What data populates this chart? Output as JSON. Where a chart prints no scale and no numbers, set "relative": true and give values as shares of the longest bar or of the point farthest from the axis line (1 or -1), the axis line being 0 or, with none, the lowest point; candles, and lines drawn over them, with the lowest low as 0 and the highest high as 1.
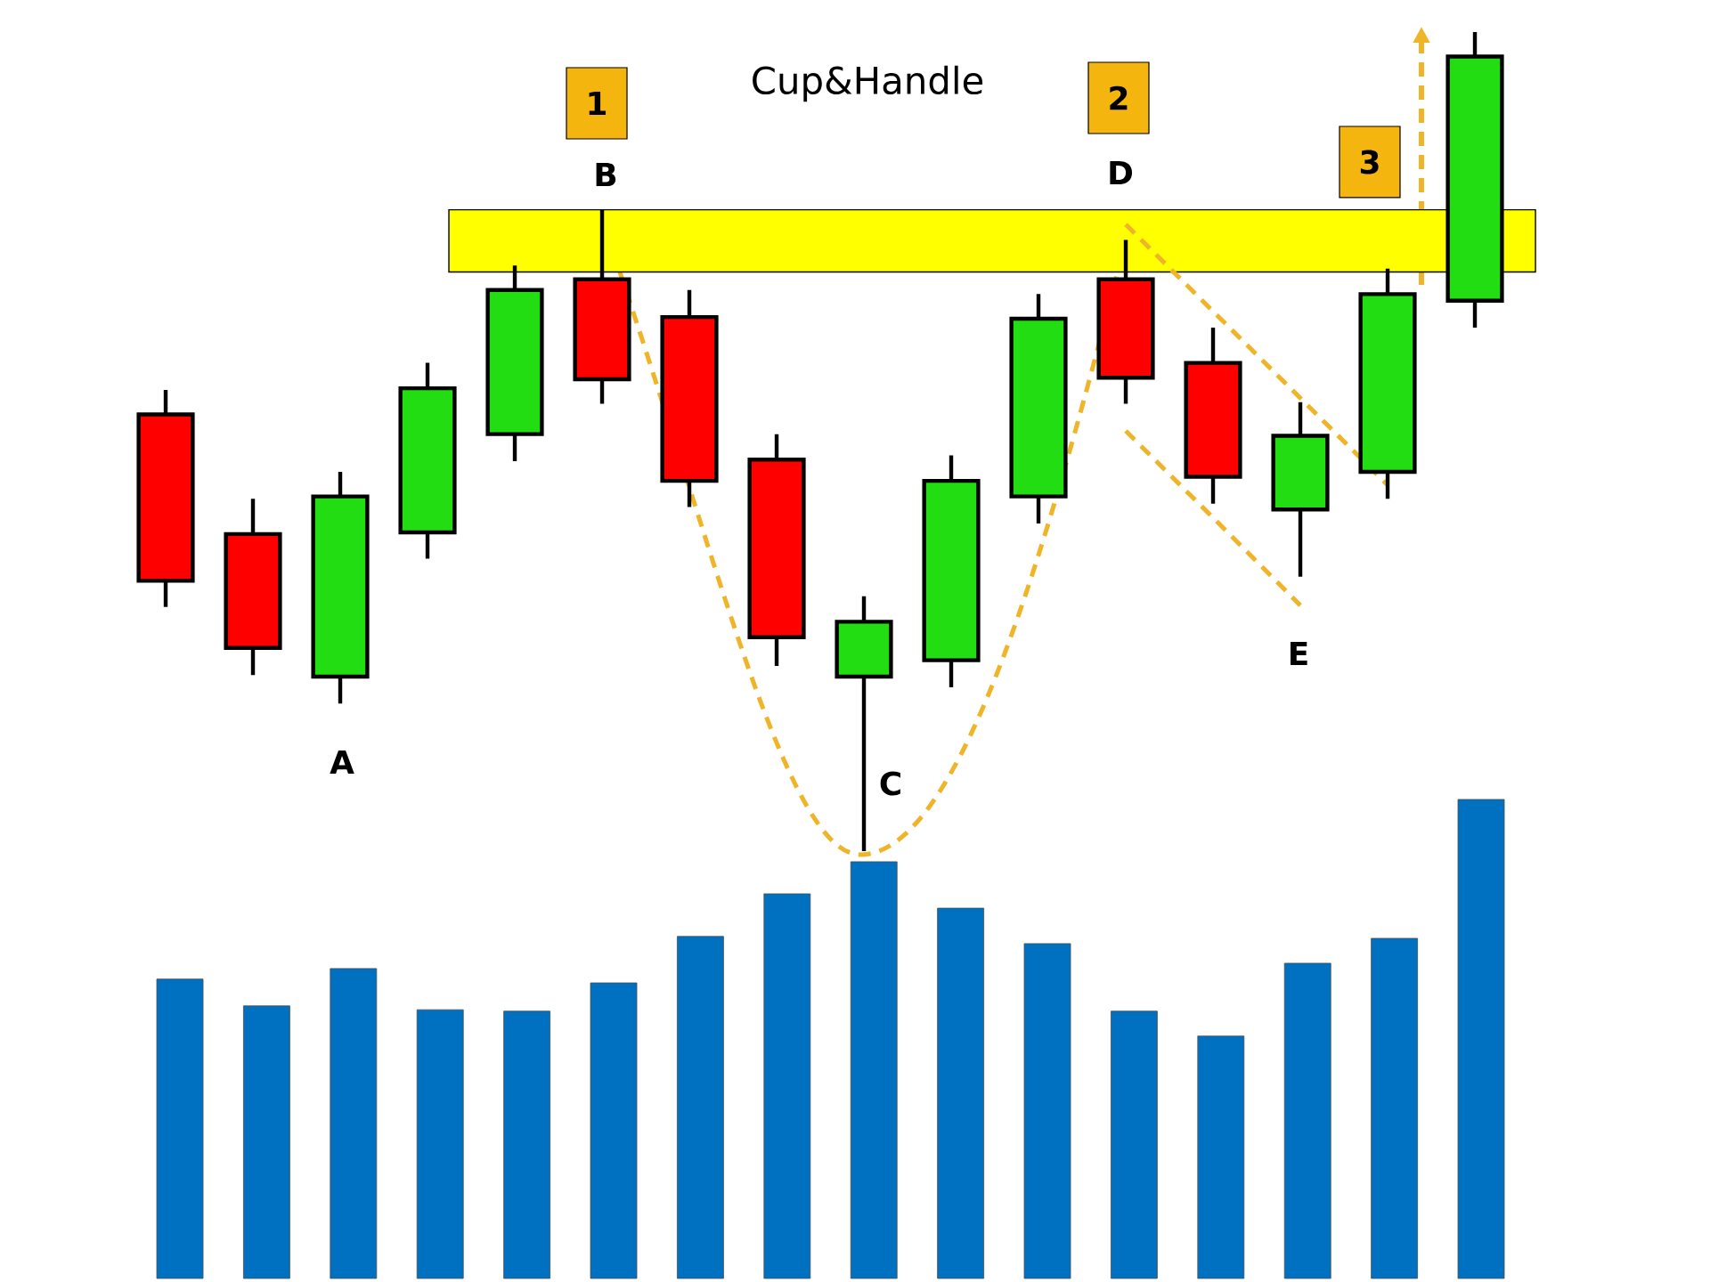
{
  "chart_data": [
    {
      "type": "candlestick",
      "title": "Cup&Handle",
      "relative": true,
      "tick_labels": false,
      "categories": [
        null,
        null,
        null,
        null,
        null,
        null,
        null,
        null,
        null,
        null,
        null,
        null,
        null,
        null,
        null,
        null
      ],
      "ohlc": [
        [
          0.533,
          0.563,
          0.298,
          0.33
        ],
        [
          0.387,
          0.43,
          0.215,
          0.248
        ],
        [
          0.213,
          0.463,
          0.18,
          0.433
        ],
        [
          0.389,
          0.596,
          0.357,
          0.565
        ],
        [
          0.509,
          0.715,
          0.476,
          0.685
        ],
        [
          0.698,
          0.783,
          0.546,
          0.576
        ],
        [
          0.652,
          0.685,
          0.42,
          0.452
        ],
        [
          0.478,
          0.509,
          0.226,
          0.261
        ],
        [
          0.213,
          0.311,
          0.0,
          0.28
        ],
        [
          0.233,
          0.483,
          0.2,
          0.452
        ],
        [
          0.433,
          0.68,
          0.4,
          0.65
        ],
        [
          0.698,
          0.746,
          0.546,
          0.578
        ],
        [
          0.596,
          0.639,
          0.424,
          0.457
        ],
        [
          0.417,
          0.548,
          0.335,
          0.507
        ],
        [
          0.463,
          0.711,
          0.43,
          0.68
        ],
        [
          0.672,
          1.0,
          0.639,
          0.97
        ]
      ],
      "colors": [
        "#ff0000",
        "#ff0000",
        "#22dd11",
        "#22dd11",
        "#22dd11",
        "#ff0000",
        "#ff0000",
        "#ff0000",
        "#22dd11",
        "#22dd11",
        "#22dd11",
        "#ff0000",
        "#ff0000",
        "#22dd11",
        "#22dd11",
        "#22dd11"
      ],
      "bands": [
        {
          "axis": "y",
          "from": 0.707,
          "to": 0.783,
          "color": "#ffff00"
        }
      ],
      "series": [
        {
          "type": "line",
          "values": [
            null,
            null,
            null,
            null,
            null,
            null,
            null,
            null,
            null,
            null,
            null,
            0.765,
            0.659,
            0.553,
            0.447,
            null
          ],
          "color": "#f0b428"
        },
        {
          "type": "line",
          "values": [
            null,
            null,
            null,
            null,
            null,
            null,
            null,
            null,
            null,
            null,
            null,
            0.513,
            0.407,
            0.3,
            null,
            null
          ],
          "color": "#f0b428"
        }
      ],
      "line_style": "dashed",
      "marker": "none",
      "annotations": [
        "1",
        "B",
        "2",
        "D",
        "3",
        "A",
        "C",
        "E"
      ]
    },
    {
      "type": "bar",
      "relative": true,
      "tick_labels": false,
      "color": "#0070c0",
      "categories": [
        null,
        null,
        null,
        null,
        null,
        null,
        null,
        null,
        null,
        null,
        null,
        null,
        null,
        null,
        null,
        null
      ],
      "values": [
        0.625,
        0.569,
        0.647,
        0.561,
        0.558,
        0.617,
        0.714,
        0.803,
        0.87,
        0.773,
        0.699,
        0.558,
        0.506,
        0.658,
        0.71,
        1.0
      ]
    }
  ]
}
